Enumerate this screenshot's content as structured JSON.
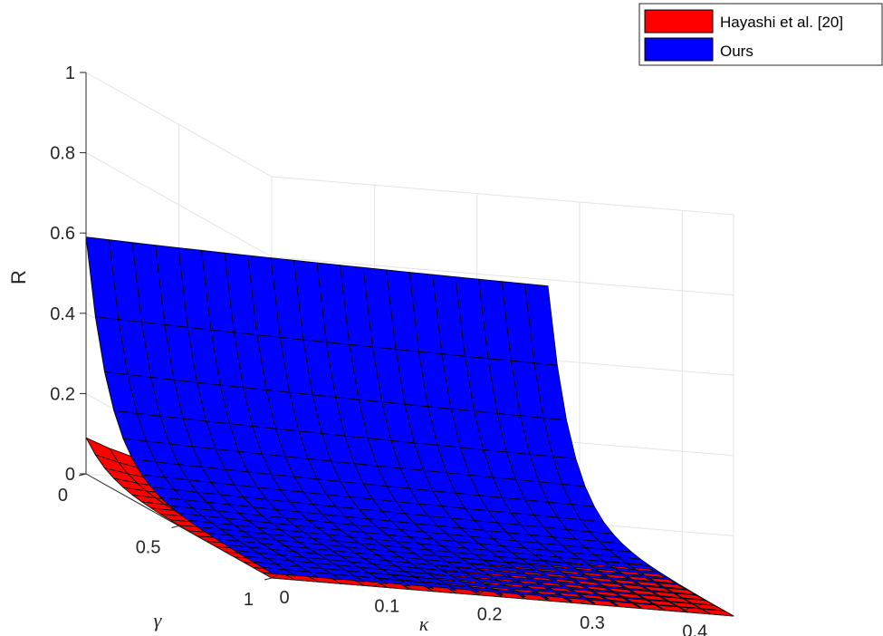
{
  "chart_data": {
    "type": "surface3d",
    "title": "",
    "xlabel": "κ",
    "ylabel": "γ",
    "zlabel": "R",
    "xlim": [
      0,
      0.45
    ],
    "ylim": [
      0,
      1
    ],
    "zlim": [
      0,
      1
    ],
    "x_ticks": [
      "0",
      "0.1",
      "0.2",
      "0.3",
      "0.4"
    ],
    "y_ticks": [
      "0",
      "0.5",
      "1"
    ],
    "z_ticks": [
      "0",
      "0.2",
      "0.4",
      "0.6",
      "0.8",
      "1"
    ],
    "grid": true,
    "legend_position": "top-right",
    "series": [
      {
        "name": "Hayashi et al. [20]",
        "color": "#ff0000",
        "function": "R = 0.09 * exp(-8*gamma) * exp(-12*kappa)",
        "peak_value": 0.09
      },
      {
        "name": "Ours",
        "color": "#0000ff",
        "function": "R = 0.56 * exp(-8*gamma) + small residual",
        "peak_value": 0.56
      }
    ]
  }
}
